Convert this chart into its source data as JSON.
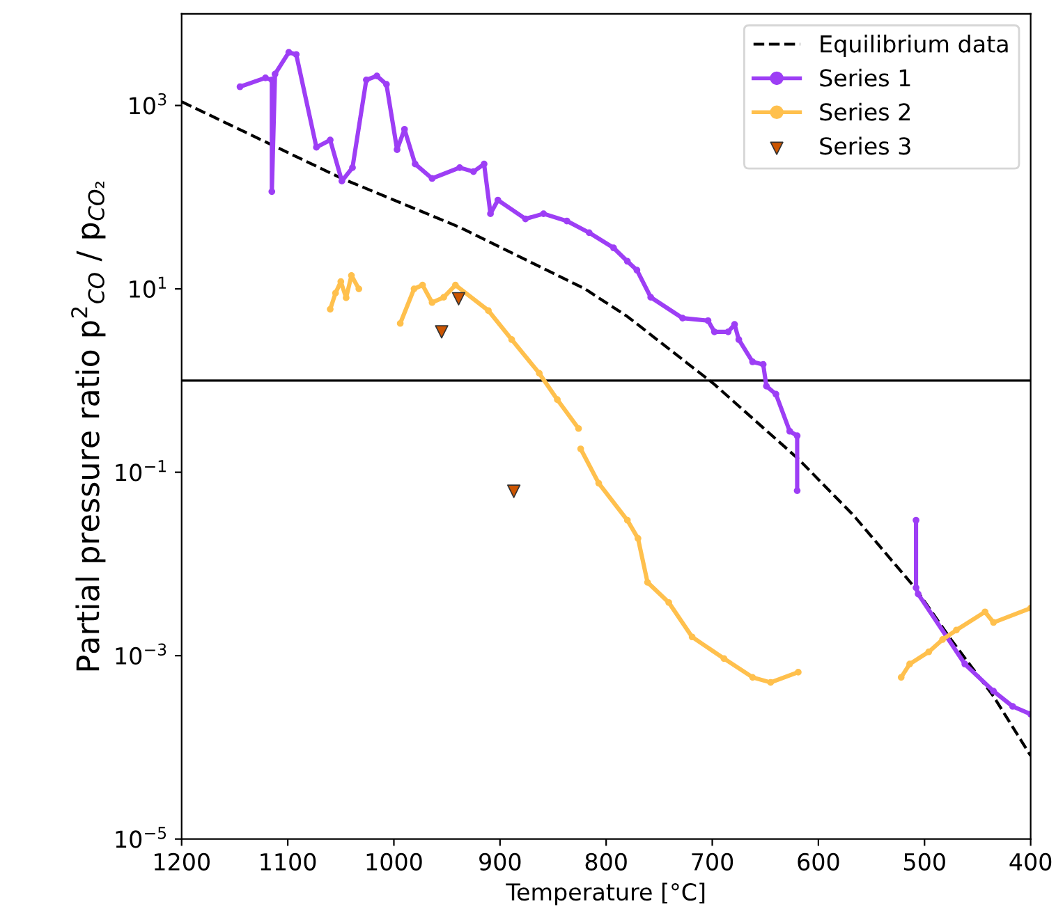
{
  "chart_data": {
    "type": "line",
    "xlabel": "Temperature [°C]",
    "ylabel": "Partial pressure ratio p$^{2}$$_{CO}$ / p$_{CO₂}$",
    "log": "y",
    "xlim": [
      1200,
      400
    ],
    "xticks": [
      1200,
      1100,
      1000,
      900,
      800,
      700,
      600,
      500,
      400
    ],
    "ylim": [
      1e-05,
      10000
    ],
    "yticks": [
      {
        "value": 1e-05,
        "label": "10$^{−5}$"
      },
      {
        "value": 0.001,
        "label": "10$^{−3}$"
      },
      {
        "value": 0.1,
        "label": "10$^{−1}$"
      },
      {
        "value": 10,
        "label": "10$^{1}$"
      },
      {
        "value": 1000,
        "label": "10$^{3}$"
      }
    ],
    "grid": false,
    "legend": "top right",
    "ref_lines": [
      {
        "axis": "y",
        "value": 1,
        "color": "#000000",
        "line_style": "solid"
      }
    ],
    "series": [
      {
        "name": "Equilibrium data",
        "color": "#000000",
        "line_style": "dashed",
        "marker": "none",
        "x": [
          1200,
          1049,
          938,
          820,
          780,
          699,
          619,
          567,
          509,
          475,
          435,
          400
        ],
        "values": [
          1100,
          160,
          47,
          10,
          5.0,
          0.93,
          0.14,
          0.034,
          0.0055,
          0.0015,
          0.00036,
          8.1e-05
        ]
      },
      {
        "name": "Series 1",
        "color": "#9d3ef5",
        "line_style": "solid",
        "marker": "circle",
        "x": [
          1145,
          1121,
          1115,
          1115,
          1112,
          1099,
          1092,
          1073,
          1060,
          1049,
          1039,
          1026,
          1016,
          1007,
          997,
          990,
          980,
          964,
          938,
          925,
          915,
          909,
          902,
          876,
          859,
          837,
          816,
          793,
          780,
          771,
          758,
          728,
          704,
          698,
          685,
          679,
          675,
          662,
          652,
          649,
          640,
          627,
          620,
          620,
          560,
          508,
          508,
          506,
          479,
          462,
          435,
          417,
          400
        ],
        "values": [
          1600,
          2000,
          1900,
          115,
          2200,
          3800,
          3600,
          350,
          420,
          150,
          210,
          1900,
          2100,
          1700,
          330,
          550,
          230,
          160,
          210,
          190,
          230,
          66,
          93,
          58,
          66,
          55,
          41,
          28,
          20,
          16,
          8.1,
          4.8,
          4.5,
          3.4,
          3.4,
          4.1,
          2.8,
          1.6,
          1.5,
          0.87,
          0.71,
          0.28,
          0.25,
          0.063,
          null,
          0.03,
          0.0055,
          0.0047,
          0.0016,
          0.00081,
          0.00041,
          0.00028,
          0.00023
        ]
      },
      {
        "name": "Series 2",
        "color": "#ffc04d",
        "line_style": "solid",
        "marker": "circle",
        "x": [
          1060,
          1055,
          1050,
          1045,
          1040,
          1033,
          1010,
          994,
          981,
          973,
          964,
          953,
          942,
          911,
          889,
          863,
          846,
          826,
          825,
          824,
          807,
          780,
          770,
          761,
          741,
          719,
          689,
          662,
          645,
          619,
          570,
          522,
          514,
          496,
          483,
          470,
          443,
          435,
          400
        ],
        "values": [
          6,
          9,
          12,
          8,
          14,
          10,
          null,
          4.2,
          10,
          11,
          7.1,
          8.1,
          11,
          5.8,
          2.8,
          1.2,
          0.62,
          0.3,
          null,
          0.18,
          0.076,
          0.03,
          0.019,
          0.0063,
          0.0038,
          0.0016,
          0.00093,
          0.00058,
          0.00051,
          0.00066,
          null,
          0.00058,
          0.00081,
          0.0011,
          0.0015,
          0.0019,
          0.003,
          0.0023,
          0.0033
        ]
      },
      {
        "name": "Series 3",
        "type": "scatter",
        "color": "#cc5500",
        "marker": "triangle",
        "x": [
          939,
          955,
          887
        ],
        "values": [
          7.8,
          3.4,
          0.062
        ]
      }
    ]
  }
}
